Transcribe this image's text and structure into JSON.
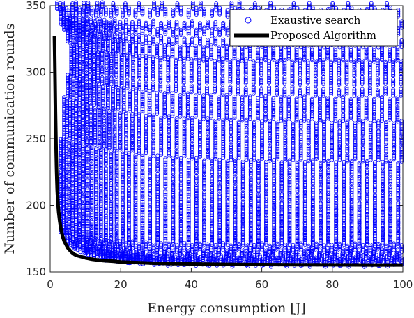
{
  "chart_data": {
    "type": "scatter",
    "xlabel": "Energy consumption [J]",
    "ylabel": "Number of communication rounds",
    "xlim": [
      0,
      100
    ],
    "ylim": [
      150,
      350
    ],
    "xticks": [
      "0",
      "20",
      "40",
      "60",
      "80",
      "100"
    ],
    "yticks": [
      "150",
      "200",
      "250",
      "300",
      "350"
    ],
    "grid": false,
    "legend_position": "top-right",
    "series": [
      {
        "name": "Exaustive search",
        "kind": "scatter",
        "marker": "open-circle",
        "color": "#0000ff",
        "bands": [
          {
            "y0": 350,
            "y1": 350,
            "x_min": 2,
            "decay": 0,
            "spacing": 2.2
          },
          {
            "y0": 345,
            "y1": 345,
            "x_min": 3,
            "decay": 0,
            "spacing": 2.2
          },
          {
            "y0": 340,
            "y1": 335,
            "x_min": 4,
            "decay": 10,
            "spacing": 2.2
          },
          {
            "y0": 338,
            "y1": 330,
            "x_min": 3,
            "decay": 12,
            "spacing": 2.2
          },
          {
            "y0": 335,
            "y1": 322,
            "x_min": 4,
            "decay": 14,
            "spacing": 2.2
          },
          {
            "y0": 330,
            "y1": 316,
            "x_min": 5,
            "decay": 15,
            "spacing": 2.2
          },
          {
            "y0": 325,
            "y1": 311,
            "x_min": 5,
            "decay": 15,
            "spacing": 2.2
          },
          {
            "y0": 318,
            "y1": 306,
            "x_min": 6,
            "decay": 16,
            "spacing": 2.2
          },
          {
            "y0": 312,
            "y1": 300,
            "x_min": 6,
            "decay": 16,
            "spacing": 2.2
          },
          {
            "y0": 306,
            "y1": 293,
            "x_min": 6,
            "decay": 17,
            "spacing": 2.2
          },
          {
            "y0": 300,
            "y1": 285,
            "x_min": 6,
            "decay": 17,
            "spacing": 2.2
          },
          {
            "y0": 295,
            "y1": 278,
            "x_min": 5,
            "decay": 18,
            "spacing": 2.2
          },
          {
            "y0": 290,
            "y1": 272,
            "x_min": 5,
            "decay": 18,
            "spacing": 2.2
          },
          {
            "y0": 284,
            "y1": 266,
            "x_min": 5,
            "decay": 18,
            "spacing": 2.2
          },
          {
            "y0": 278,
            "y1": 260,
            "x_min": 4,
            "decay": 18,
            "spacing": 2.2
          },
          {
            "y0": 272,
            "y1": 254,
            "x_min": 4,
            "decay": 18,
            "spacing": 2.2
          },
          {
            "y0": 266,
            "y1": 248,
            "x_min": 4,
            "decay": 18,
            "spacing": 2.2
          },
          {
            "y0": 260,
            "y1": 242,
            "x_min": 4,
            "decay": 18,
            "spacing": 2.2
          },
          {
            "y0": 254,
            "y1": 236,
            "x_min": 4,
            "decay": 18,
            "spacing": 2.2
          },
          {
            "y0": 248,
            "y1": 230,
            "x_min": 3,
            "decay": 18,
            "spacing": 2.2
          },
          {
            "y0": 242,
            "y1": 224,
            "x_min": 3,
            "decay": 18,
            "spacing": 2.2
          },
          {
            "y0": 236,
            "y1": 218,
            "x_min": 3,
            "decay": 17,
            "spacing": 2.2
          },
          {
            "y0": 230,
            "y1": 212,
            "x_min": 3,
            "decay": 17,
            "spacing": 2.2
          },
          {
            "y0": 224,
            "y1": 206,
            "x_min": 3,
            "decay": 16,
            "spacing": 2.2
          },
          {
            "y0": 218,
            "y1": 200,
            "x_min": 3,
            "decay": 16,
            "spacing": 2.2
          },
          {
            "y0": 212,
            "y1": 195,
            "x_min": 3,
            "decay": 15,
            "spacing": 2.2
          },
          {
            "y0": 206,
            "y1": 190,
            "x_min": 3,
            "decay": 14,
            "spacing": 2.2
          },
          {
            "y0": 200,
            "y1": 185,
            "x_min": 3,
            "decay": 13,
            "spacing": 2.2
          },
          {
            "y0": 194,
            "y1": 180,
            "x_min": 3,
            "decay": 12,
            "spacing": 2.2
          },
          {
            "y0": 188,
            "y1": 176,
            "x_min": 3,
            "decay": 11,
            "spacing": 2.2
          },
          {
            "y0": 183,
            "y1": 172,
            "x_min": 3,
            "decay": 10,
            "spacing": 2.2
          },
          {
            "y0": 178,
            "y1": 168,
            "x_min": 4,
            "decay": 10,
            "spacing": 2.2
          },
          {
            "y0": 173,
            "y1": 165,
            "x_min": 5,
            "decay": 9,
            "spacing": 2.2
          },
          {
            "y0": 169,
            "y1": 162,
            "x_min": 7,
            "decay": 9,
            "spacing": 2.2
          },
          {
            "y0": 165,
            "y1": 160,
            "x_min": 10,
            "decay": 9,
            "spacing": 2.2
          },
          {
            "y0": 162,
            "y1": 158,
            "x_min": 15,
            "decay": 10,
            "spacing": 2.2
          },
          {
            "y0": 160,
            "y1": 157,
            "x_min": 22,
            "decay": 12,
            "spacing": 2.2
          }
        ]
      },
      {
        "name": "Proposed Algorithm",
        "kind": "line",
        "color": "#000000",
        "x": [
          1.2,
          1.3,
          1.4,
          1.5,
          1.6,
          1.7,
          1.8,
          1.9,
          2.0,
          2.2,
          2.4,
          2.7,
          3.0,
          3.5,
          4.0,
          5.0,
          6.0,
          7.0,
          8.0,
          10.0,
          12.0,
          15.0,
          18.0,
          20.0,
          25.0,
          30.0,
          35.0,
          40.0,
          50.0,
          60.0,
          70.0,
          80.0,
          90.0,
          100.0
        ],
        "y": [
          327,
          310,
          290,
          270,
          255,
          240,
          228,
          219,
          211,
          202,
          195,
          188,
          183,
          177,
          173,
          168,
          165,
          163,
          162,
          160.5,
          159.5,
          158.5,
          158,
          157.5,
          157,
          156.5,
          156.2,
          156,
          155.7,
          155.5,
          155.4,
          155.3,
          155.2,
          155.2
        ]
      }
    ]
  }
}
